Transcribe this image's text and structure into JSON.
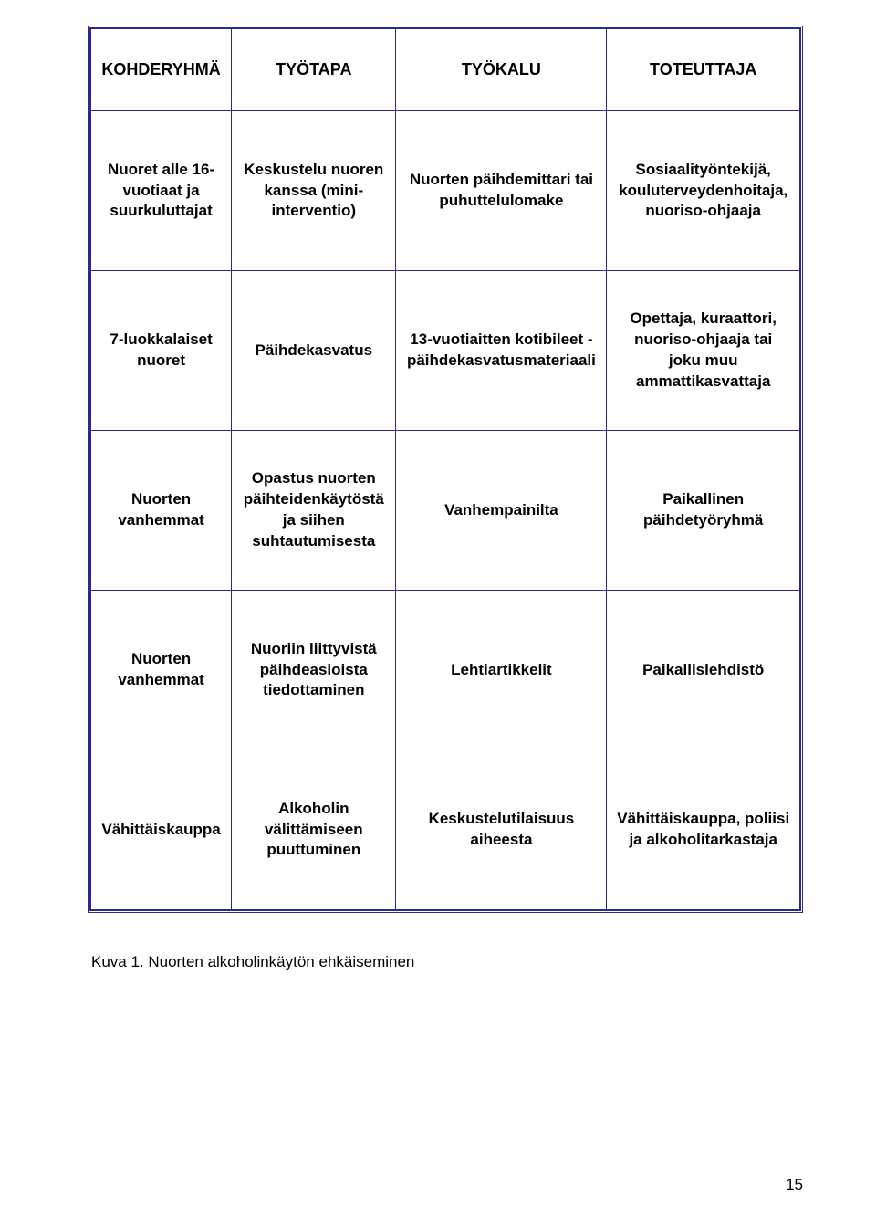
{
  "table": {
    "border_color": "#2a2a8a",
    "background_color": "#ffffff",
    "text_color": "#000000",
    "font_family": "Arial",
    "header_fontsize": 18,
    "cell_fontsize": 17,
    "cell_fontweight": "bold",
    "columns": [
      "KOHDERYHMÄ",
      "TYÖTAPA",
      "TYÖKALU",
      "TOTEUTTAJA"
    ],
    "rows": [
      {
        "c0": "Nuoret alle 16-vuotiaat ja suurkuluttajat",
        "c1": "Keskustelu nuoren kanssa (mini-interventio)",
        "c2": "Nuorten päihdemittari tai puhuttelulomake",
        "c3": "Sosiaalityöntekijä, kouluterveydenhoitaja, nuoriso-ohjaaja"
      },
      {
        "c0": "7-luokkalaiset nuoret",
        "c1": "Päihdekasvatus",
        "c2": "13-vuotiaitten kotibileet - päihdekasvatusmateriaali",
        "c3": "Opettaja, kuraattori, nuoriso-ohjaaja tai joku muu ammattikasvattaja"
      },
      {
        "c0": "Nuorten vanhemmat",
        "c1": "Opastus nuorten päihteidenkäytöstä ja siihen suhtautumisesta",
        "c2": "Vanhempainilta",
        "c3": "Paikallinen päihdetyöryhmä"
      },
      {
        "c0": "Nuorten vanhemmat",
        "c1": "Nuoriin liittyvistä päihdeasioista tiedottaminen",
        "c2": "Lehtiartikkelit",
        "c3": "Paikallislehdistö"
      },
      {
        "c0": "Vähittäiskauppa",
        "c1": "Alkoholin välittämiseen puuttuminen",
        "c2": "Keskustelutilaisuus aiheesta",
        "c3": "Vähittäiskauppa, poliisi ja alkoholitarkastaja"
      }
    ]
  },
  "caption": "Kuva 1. Nuorten alkoholinkäytön ehkäiseminen",
  "page_number": "15"
}
